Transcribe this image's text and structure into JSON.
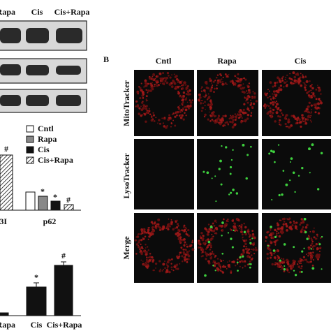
{
  "blot": {
    "lanes": [
      "Rapa",
      "Cis",
      "Cis+Rapa"
    ]
  },
  "legend": [
    "Cntl",
    "Rapa",
    "Cis",
    "Cis+Rapa"
  ],
  "chart1": {
    "groups": [
      "3I",
      "p62"
    ],
    "annotations": [
      "#",
      "*",
      "*",
      "#"
    ]
  },
  "chart2": {
    "categories": [
      "Rapa",
      "Cis",
      "Cis+Rapa"
    ],
    "annotations": [
      "*",
      "#"
    ]
  },
  "panel_b": {
    "label": "B",
    "columns": [
      "Cntl",
      "Rapa",
      "Cis"
    ],
    "rows": [
      "MitoTracker",
      "LysoTracker",
      "Merge"
    ]
  }
}
